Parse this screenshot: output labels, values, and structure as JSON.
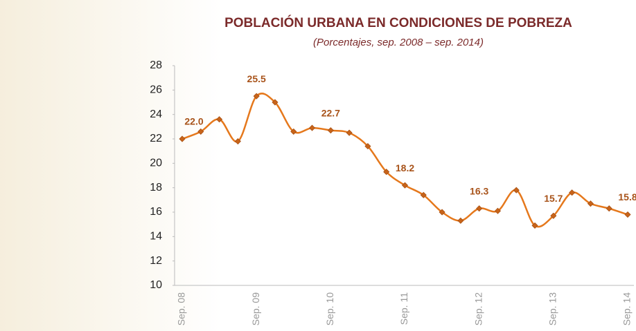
{
  "chart_data": {
    "type": "line",
    "title": "POBLACIÓN URBANA EN CONDICIONES DE POBREZA",
    "subtitle": "(Porcentajes, sep. 2008 – sep. 2014)",
    "categories": [
      "Sep. 08",
      null,
      null,
      null,
      "Sep. 09",
      null,
      null,
      null,
      "Sep. 10",
      null,
      null,
      null,
      "Sep. 11",
      null,
      null,
      null,
      "Sep. 12",
      null,
      null,
      null,
      "Sep. 13",
      null,
      null,
      null,
      "Sep. 14"
    ],
    "values": [
      22.0,
      22.6,
      23.6,
      21.8,
      25.5,
      25.0,
      22.6,
      22.9,
      22.7,
      22.5,
      21.4,
      19.3,
      18.2,
      17.4,
      16.0,
      15.3,
      16.3,
      16.1,
      17.8,
      14.9,
      15.7,
      17.6,
      16.7,
      16.3,
      15.8
    ],
    "value_labels": [
      "22.0",
      null,
      null,
      null,
      "25.5",
      null,
      null,
      null,
      "22.7",
      null,
      null,
      null,
      "18.2",
      null,
      null,
      null,
      "16.3",
      null,
      null,
      null,
      "15.7",
      null,
      null,
      null,
      "15.8"
    ],
    "color": "#e5781c",
    "ylim": [
      10,
      28
    ],
    "yticks": [
      10,
      12,
      14,
      16,
      18,
      20,
      22,
      24,
      26,
      28
    ]
  }
}
